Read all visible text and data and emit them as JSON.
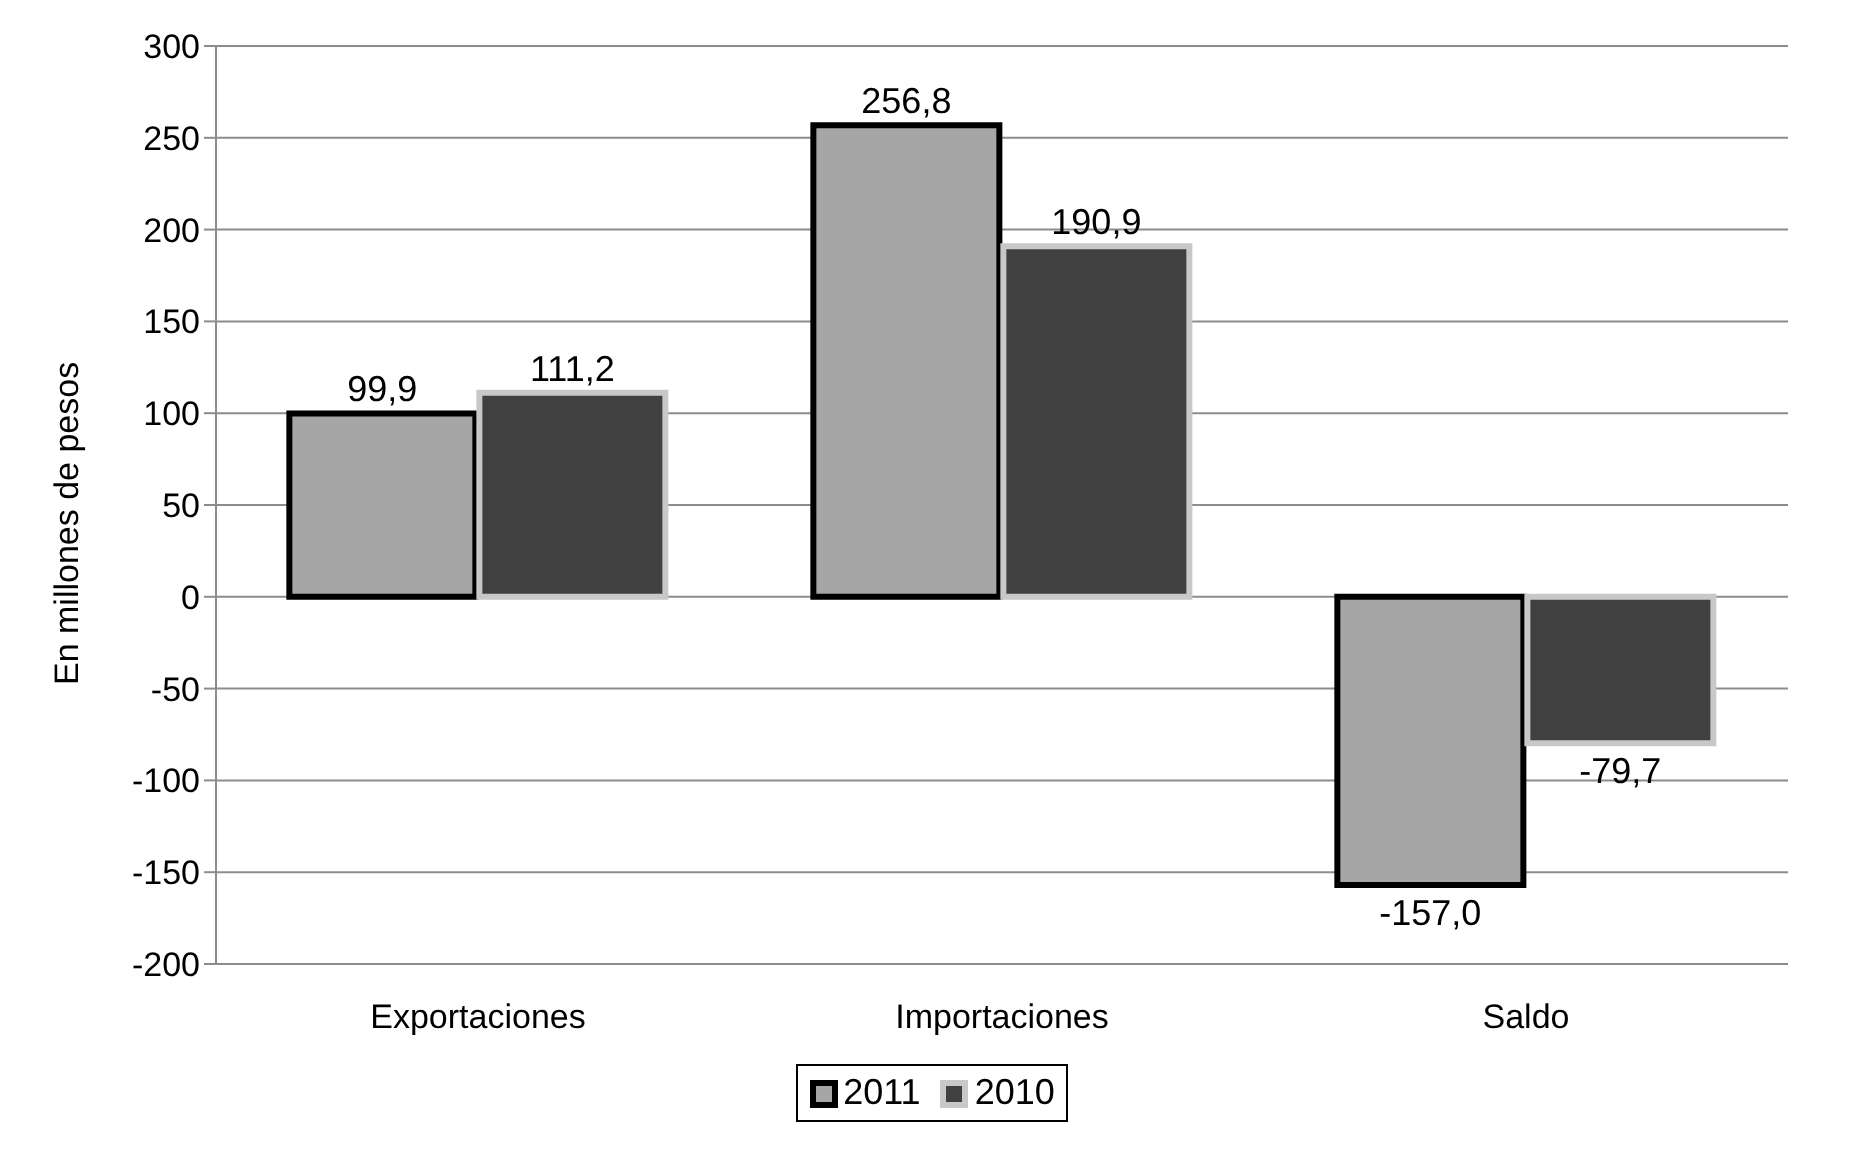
{
  "chart_data": {
    "type": "bar",
    "ylabel": "En millones de pesos",
    "categories": [
      "Exportaciones",
      "Importaciones",
      "Saldo"
    ],
    "series": [
      {
        "name": "2011",
        "color": "#a6a6a6",
        "values": [
          99.9,
          256.8,
          -157.0
        ],
        "value_labels": [
          "99,9",
          "256,8",
          "-157,0"
        ]
      },
      {
        "name": "2010",
        "color": "#404040",
        "values": [
          111.2,
          190.9,
          -79.7
        ],
        "value_labels": [
          "111,2",
          "190,9",
          "-79,7"
        ]
      }
    ],
    "ylim": [
      -200,
      300
    ],
    "yticks": [
      -200,
      -150,
      -100,
      -50,
      0,
      50,
      100,
      150,
      200,
      250,
      300
    ],
    "grid": "y",
    "legend": "bottom"
  }
}
